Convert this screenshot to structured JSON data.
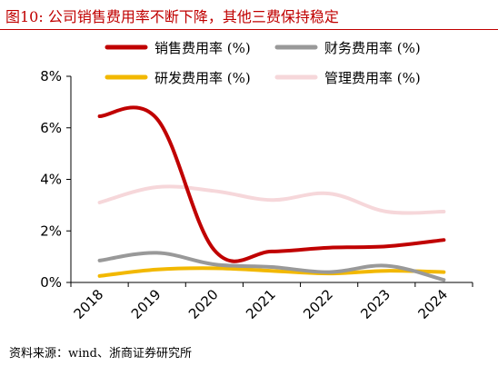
{
  "title": "图10:  公司销售费用率不断下降，其他三费保持稳定",
  "source": "资料来源：wind、浙商证券研究所",
  "colors": {
    "title": "#c00000",
    "sales": "#c00000",
    "finance": "#999999",
    "rd": "#f2b800",
    "admin": "#f6d7da"
  },
  "chart_data": {
    "type": "line",
    "categories": [
      "2018",
      "2019",
      "2020",
      "2021",
      "2022",
      "2023",
      "2024"
    ],
    "ylim": [
      0,
      8
    ],
    "yticks": [
      "0%",
      "2%",
      "4%",
      "6%",
      "8%"
    ],
    "yunit": "%",
    "grid": false,
    "legend_position": "top",
    "series": [
      {
        "name": "销售费用率 (%)",
        "key": "sales",
        "values": [
          6.45,
          6.35,
          1.25,
          1.2,
          1.35,
          1.4,
          1.65
        ]
      },
      {
        "name": "财务费用率 (%)",
        "key": "finance",
        "values": [
          0.85,
          1.15,
          0.7,
          0.6,
          0.4,
          0.65,
          0.1
        ]
      },
      {
        "name": "研发费用率 (%)",
        "key": "rd",
        "values": [
          0.25,
          0.5,
          0.55,
          0.45,
          0.35,
          0.45,
          0.4
        ]
      },
      {
        "name": "管理费用率 (%)",
        "key": "admin",
        "values": [
          3.1,
          3.7,
          3.55,
          3.2,
          3.45,
          2.75,
          2.75
        ]
      }
    ]
  }
}
